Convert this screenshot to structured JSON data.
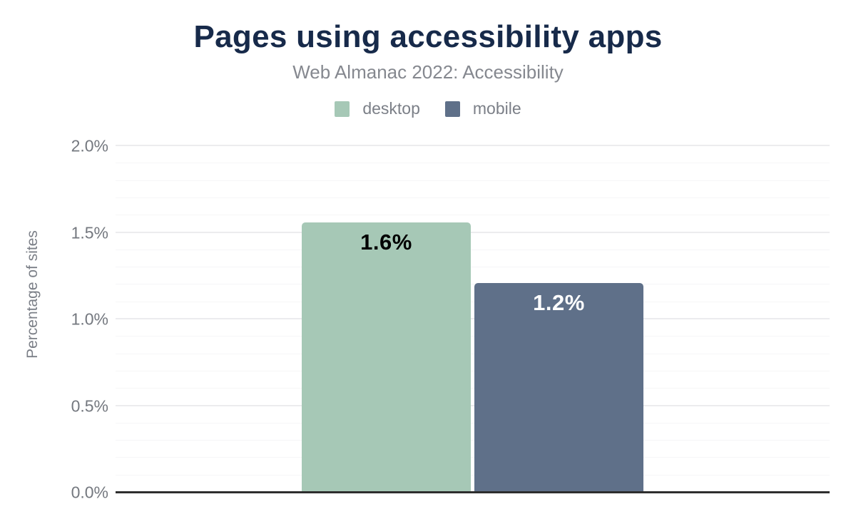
{
  "chart_data": {
    "type": "bar",
    "title": "Pages using accessibility apps",
    "subtitle": "Web Almanac 2022: Accessibility",
    "ylabel": "Percentage of sites",
    "categories": [
      "desktop",
      "mobile"
    ],
    "values": [
      1.56,
      1.21
    ],
    "value_labels": [
      "1.6%",
      "1.2%"
    ],
    "bar_colors": [
      "#a6c8b6",
      "#5f7089"
    ],
    "value_label_colors": [
      "#000000",
      "#ffffff"
    ],
    "ylim": [
      0,
      2
    ],
    "y_ticks": [
      {
        "value": 0,
        "label": "0.0%"
      },
      {
        "value": 0.5,
        "label": "0.5%"
      },
      {
        "value": 1.0,
        "label": "1.0%"
      },
      {
        "value": 1.5,
        "label": "1.5%"
      },
      {
        "value": 2.0,
        "label": "2.0%"
      }
    ],
    "minor_grid_step": 0.1,
    "grid": true,
    "legend_position": "top",
    "xlabel": ""
  },
  "colors": {
    "background": "#ffffff",
    "title": "#172a4a",
    "subtitle": "#85888f",
    "axis_text": "#74787f",
    "legend_text": "#7b7f87",
    "axis_line": "#2e2e2e",
    "grid_major": "#ececee",
    "grid_minor": "#f6f6f7"
  }
}
